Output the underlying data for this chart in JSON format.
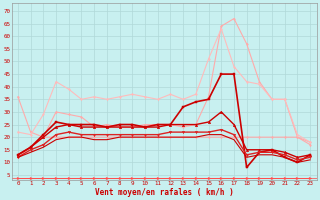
{
  "xlabel": "Vent moyen/en rafales ( km/h )",
  "xlabel_color": "#cc0000",
  "bg_color": "#c8f0f0",
  "grid_color": "#b0d8d8",
  "x": [
    0,
    1,
    2,
    3,
    4,
    5,
    6,
    7,
    8,
    9,
    10,
    11,
    12,
    13,
    14,
    15,
    16,
    17,
    18,
    19,
    20,
    21,
    22,
    23
  ],
  "yticks": [
    5,
    10,
    15,
    20,
    25,
    30,
    35,
    40,
    45,
    50,
    55,
    60,
    65,
    70
  ],
  "ylim": [
    3,
    73
  ],
  "series": [
    {
      "y": [
        36,
        22,
        20,
        20,
        20,
        20,
        20,
        20,
        20,
        20,
        20,
        20,
        20,
        20,
        20,
        20,
        20,
        20,
        20,
        20,
        20,
        20,
        20,
        17
      ],
      "color": "#ffaaaa",
      "lw": 0.8,
      "marker": "d",
      "ms": 1.5
    },
    {
      "y": [
        12,
        16,
        20,
        30,
        29,
        28,
        24,
        25,
        24,
        24,
        25,
        25,
        25,
        24,
        25,
        36,
        64,
        67,
        57,
        42,
        35,
        35,
        20,
        18
      ],
      "color": "#ffaaaa",
      "lw": 0.8,
      "marker": "d",
      "ms": 1.5
    },
    {
      "y": [
        22,
        21,
        29,
        42,
        39,
        35,
        36,
        35,
        36,
        37,
        36,
        35,
        37,
        35,
        37,
        51,
        63,
        48,
        42,
        41,
        35,
        35,
        21,
        18
      ],
      "color": "#ffbbbb",
      "lw": 0.8,
      "marker": "d",
      "ms": 1.5
    },
    {
      "y": [
        13,
        16,
        21,
        26,
        25,
        25,
        25,
        24,
        25,
        25,
        24,
        25,
        25,
        32,
        34,
        35,
        45,
        45,
        8,
        14,
        15,
        12,
        10,
        13
      ],
      "color": "#cc0000",
      "lw": 1.2,
      "marker": "s",
      "ms": 2.0
    },
    {
      "y": [
        13,
        16,
        20,
        24,
        25,
        24,
        24,
        24,
        24,
        24,
        24,
        24,
        25,
        25,
        25,
        26,
        30,
        25,
        15,
        15,
        15,
        14,
        12,
        13
      ],
      "color": "#cc0000",
      "lw": 1.0,
      "marker": "^",
      "ms": 1.8
    },
    {
      "y": [
        12,
        15,
        17,
        21,
        22,
        21,
        21,
        21,
        21,
        21,
        21,
        21,
        22,
        22,
        22,
        22,
        23,
        21,
        13,
        14,
        14,
        13,
        11,
        12
      ],
      "color": "#dd2222",
      "lw": 1.0,
      "marker": "v",
      "ms": 1.8
    },
    {
      "y": [
        12,
        14,
        16,
        19,
        20,
        20,
        19,
        19,
        20,
        20,
        20,
        20,
        20,
        20,
        20,
        21,
        21,
        19,
        12,
        13,
        13,
        12,
        10,
        11
      ],
      "color": "#cc0000",
      "lw": 0.8,
      "marker": "None",
      "ms": 0
    },
    {
      "y": [
        4,
        4,
        4,
        4,
        4,
        4,
        4,
        4,
        4,
        4,
        4,
        4,
        4,
        4,
        4,
        4,
        4,
        4,
        4,
        4,
        4,
        4,
        4,
        4
      ],
      "color": "#ff6666",
      "lw": 0.7,
      "marker": ">",
      "ms": 2.0
    }
  ]
}
